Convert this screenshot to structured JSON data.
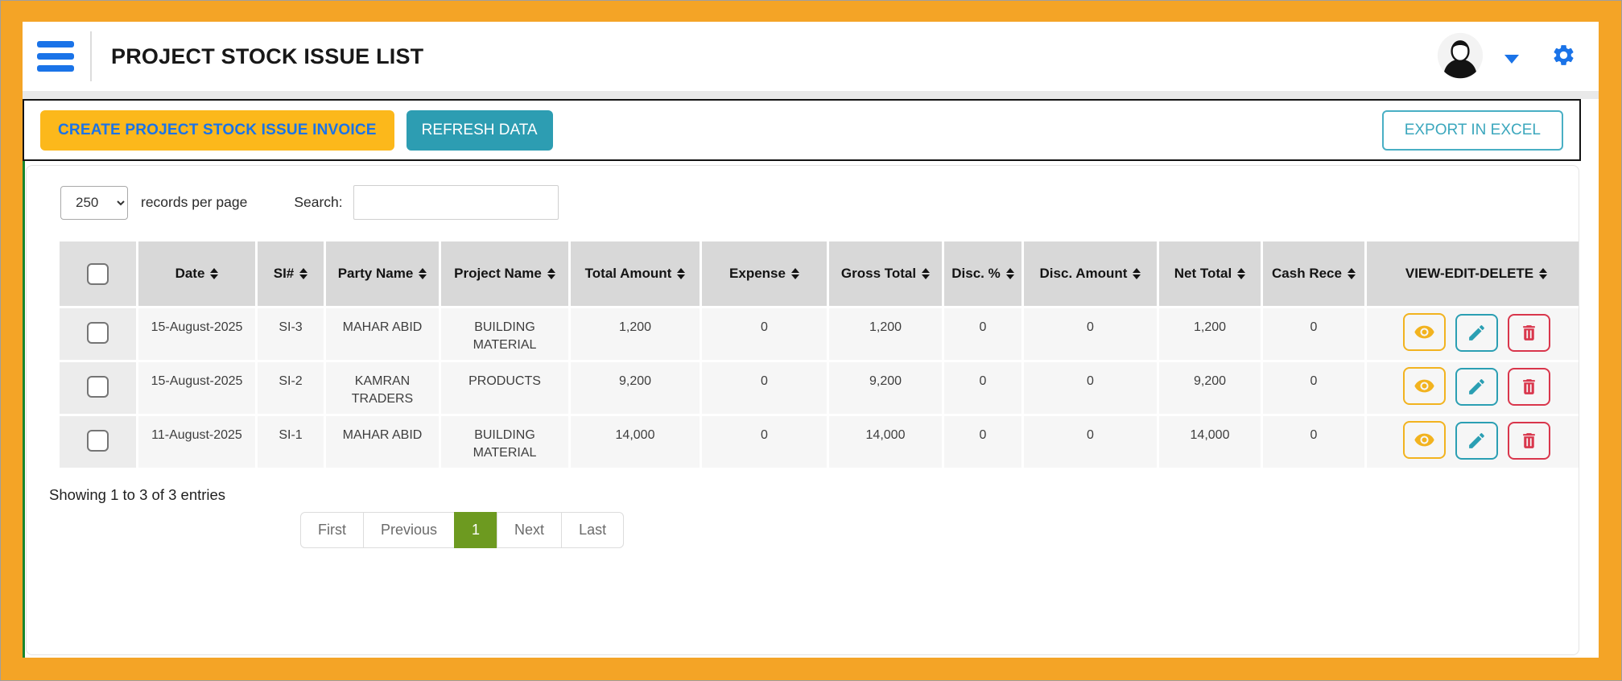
{
  "header": {
    "title": "PROJECT STOCK ISSUE LIST",
    "icons": {
      "menu": "hamburger-icon",
      "user": "avatar-icon",
      "dropdown": "caret-down-icon",
      "settings": "gear-icon"
    }
  },
  "toolbar": {
    "create_label": "CREATE PROJECT STOCK ISSUE INVOICE",
    "refresh_label": "REFRESH DATA",
    "export_label": "EXPORT IN EXCEL"
  },
  "controls": {
    "page_size_selected": "250",
    "records_label": "records per page",
    "search_label": "Search:",
    "search_value": ""
  },
  "table": {
    "columns": [
      "Date",
      "SI#",
      "Party Name",
      "Project Name",
      "Total Amount",
      "Expense",
      "Gross Total",
      "Disc. %",
      "Disc. Amount",
      "Net Total",
      "Cash Rece",
      "VIEW-EDIT-DELETE"
    ],
    "sort_icon": "sort-arrows-icon",
    "row_action_icons": [
      "eye-icon",
      "pencil-icon",
      "trash-icon"
    ],
    "rows": [
      {
        "cells": [
          "15-August-2025",
          "SI-3",
          "MAHAR ABID",
          "BUILDING MATERIAL",
          "1,200",
          "0",
          "1,200",
          "0",
          "0",
          "1,200",
          "0"
        ],
        "checked": false
      },
      {
        "cells": [
          "15-August-2025",
          "SI-2",
          "KAMRAN TRADERS",
          "PRODUCTS",
          "9,200",
          "0",
          "9,200",
          "0",
          "0",
          "9,200",
          "0"
        ],
        "checked": false
      },
      {
        "cells": [
          "11-August-2025",
          "SI-1",
          "MAHAR ABID",
          "BUILDING MATERIAL",
          "14,000",
          "0",
          "14,000",
          "0",
          "0",
          "14,000",
          "0"
        ],
        "checked": false
      }
    ]
  },
  "footer": {
    "showing_text": "Showing 1 to 3 of 3 entries",
    "pagination": [
      {
        "label": "First",
        "active": false
      },
      {
        "label": "Previous",
        "active": false
      },
      {
        "label": "1",
        "active": true
      },
      {
        "label": "Next",
        "active": false
      },
      {
        "label": "Last",
        "active": false
      }
    ]
  },
  "colors": {
    "frame_orange": "#F4A426",
    "accent_blue": "#1A73E8",
    "create_btn_orange": "#FCB81B",
    "refresh_btn_teal": "#2D9DB2",
    "export_btn_teal": "#3BA7BD",
    "active_page_green": "#6D9A20",
    "content_border_green": "#19862C",
    "view_amber": "#F2B31F",
    "edit_teal": "#2B9FB3",
    "delete_red": "#D9364C",
    "header_cell_gray": "#D8D8D8",
    "row_gray": "#F6F6F6"
  }
}
